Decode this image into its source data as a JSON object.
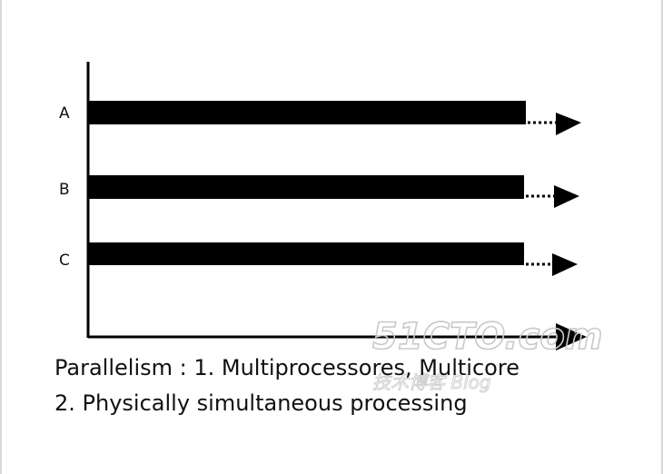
{
  "diagram": {
    "rows": [
      {
        "label": "A"
      },
      {
        "label": "B"
      },
      {
        "label": "C"
      }
    ]
  },
  "caption": {
    "line1": "Parallelism : 1. Multiprocessores, Multicore",
    "line2": "2. Physically simultaneous processing"
  },
  "watermark": {
    "text": "51CTO.com",
    "subtext": "技术博客 Blog",
    "color": "#c9c9c9"
  },
  "colors": {
    "bar": "#000000",
    "axis": "#000000",
    "text": "#111111"
  }
}
